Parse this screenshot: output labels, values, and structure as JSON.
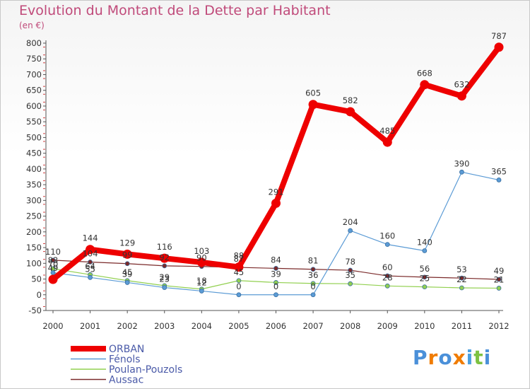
{
  "chart_data": {
    "type": "line",
    "title": "Evolution du Montant de la Dette par Habitant",
    "subtitle": "(en €)",
    "x": [
      "2000",
      "2001",
      "2002",
      "2003",
      "2004",
      "2005",
      "2006",
      "2007",
      "2008",
      "2009",
      "2010",
      "2011",
      "2012"
    ],
    "ylim": [
      -50,
      800
    ],
    "yticks": [
      -50,
      0,
      50,
      100,
      150,
      200,
      250,
      300,
      350,
      400,
      450,
      500,
      550,
      600,
      650,
      700,
      750,
      800
    ],
    "grid": false,
    "legend_position": "bottom-left",
    "series": [
      {
        "name": "ORBAN",
        "color": "#ee0000",
        "values": [
          49,
          144,
          129,
          116,
          103,
          88,
          291,
          605,
          582,
          485,
          668,
          632,
          787
        ]
      },
      {
        "name": "Fénols",
        "color": "#5b9bd5",
        "values": [
          70,
          55,
          39,
          23,
          12,
          0,
          0,
          0,
          204,
          160,
          140,
          390,
          365
        ]
      },
      {
        "name": "Poulan-Pouzols",
        "color": "#92d050",
        "values": [
          83,
          64,
          45,
          29,
          18,
          45,
          39,
          36,
          35,
          28,
          25,
          22,
          21
        ]
      },
      {
        "name": "Aussac",
        "color": "#7b2a2a",
        "values": [
          110,
          104,
          99,
          92,
          90,
          87,
          84,
          81,
          78,
          60,
          56,
          53,
          49
        ]
      }
    ]
  },
  "logo": {
    "text": "Proxiti",
    "colors": [
      "#4a90d9",
      "#f07c00",
      "#4a90d9",
      "#f07c00",
      "#4aa0e0",
      "#7dc242",
      "#4a90d9"
    ]
  }
}
